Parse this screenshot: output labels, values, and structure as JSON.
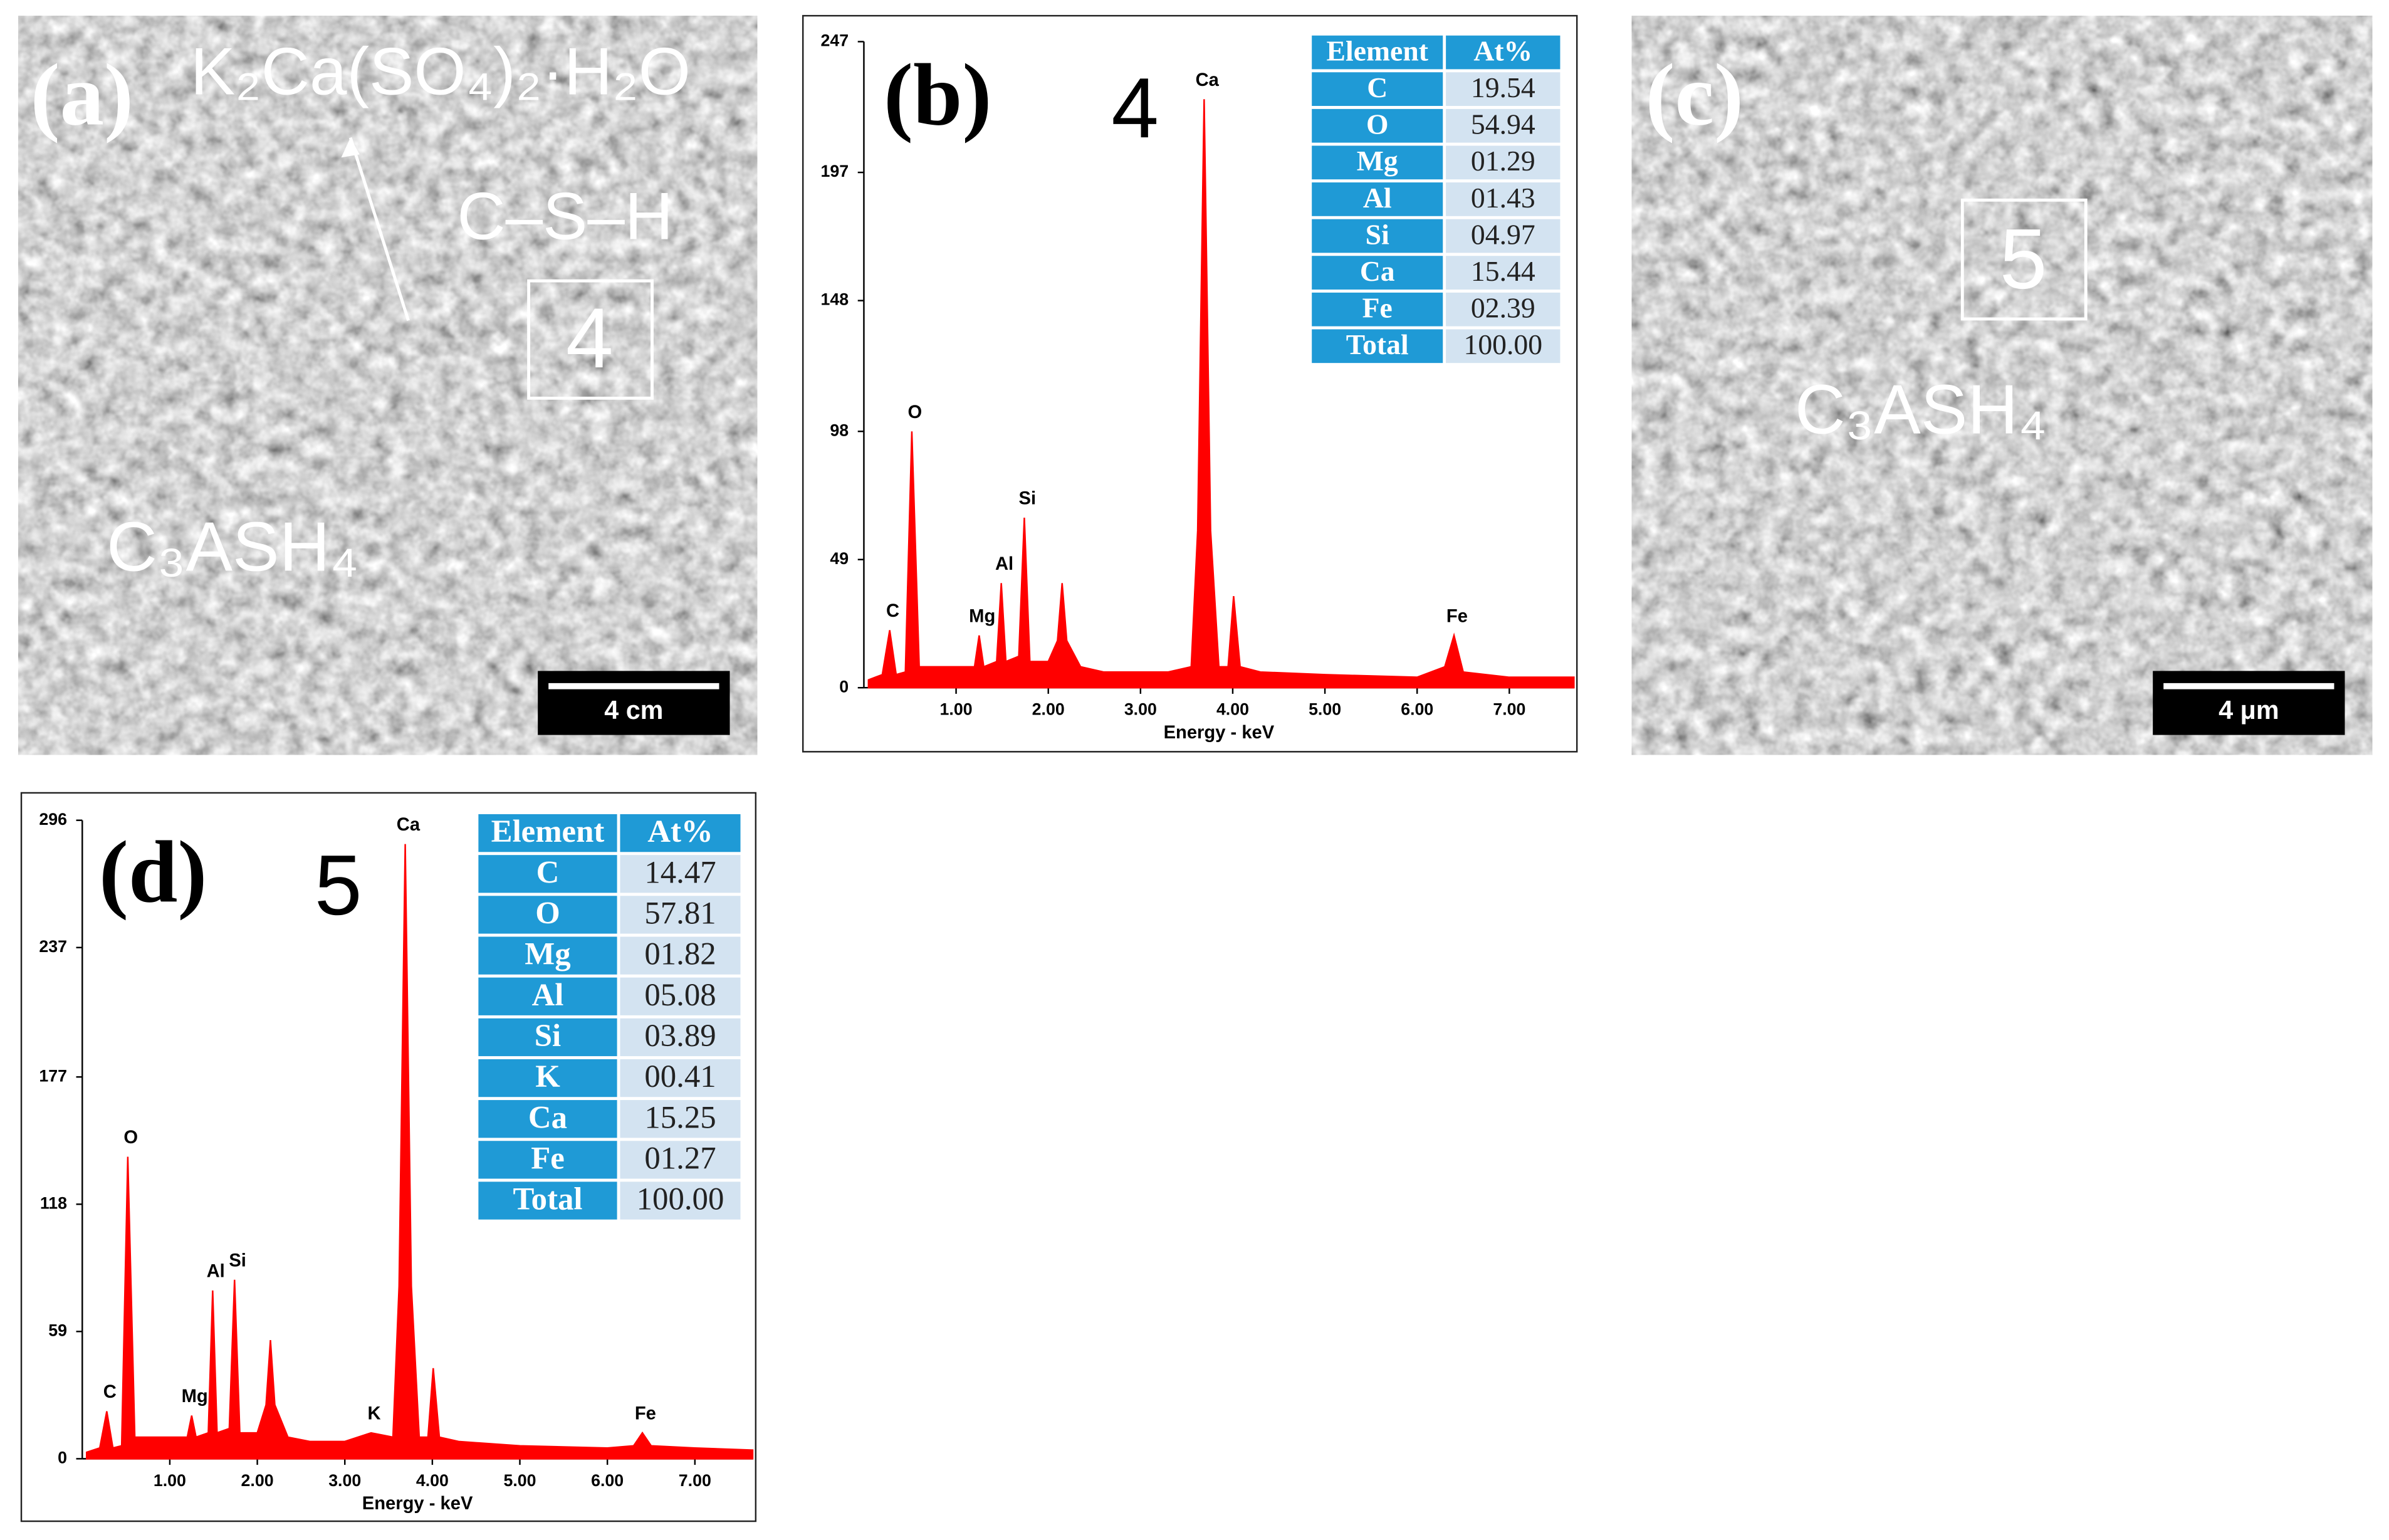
{
  "panels": [
    {
      "letter": "(a)",
      "labels": [
        "K₂Ca(SO₄)₂·H₂O",
        "C–S–H",
        "4",
        "C₃ASH₄"
      ],
      "scale_bar": "4 cm"
    },
    {
      "letter": "(c)",
      "labels": [
        "5",
        "C₃ASH₄"
      ],
      "scale_bar": "4 μm"
    }
  ],
  "chart_data": [
    {
      "type": "area",
      "letter": "(b)",
      "spot": "4",
      "xlabel": "Energy - keV",
      "color": "#ff0000",
      "x": [
        0.05,
        0.2,
        0.28,
        0.35,
        0.45,
        0.52,
        0.6,
        0.8,
        1.0,
        1.2,
        1.25,
        1.3,
        1.44,
        1.49,
        1.54,
        1.68,
        1.74,
        1.8,
        2.0,
        2.1,
        2.15,
        2.2,
        2.35,
        2.6,
        3.0,
        3.3,
        3.55,
        3.62,
        3.69,
        3.76,
        3.85,
        3.95,
        4.01,
        4.08,
        4.3,
        5.0,
        6.0,
        6.3,
        6.4,
        6.5,
        7.0,
        7.7
      ],
      "values": [
        3,
        5,
        22,
        5,
        6,
        98,
        8,
        8,
        8,
        8,
        20,
        8,
        10,
        40,
        10,
        12,
        65,
        10,
        10,
        18,
        40,
        18,
        8,
        6,
        6,
        6,
        8,
        60,
        225,
        60,
        8,
        8,
        35,
        8,
        6,
        5,
        4,
        8,
        20,
        6,
        4,
        4
      ],
      "xlim": [
        0,
        7.7
      ],
      "ylim": [
        0,
        247
      ],
      "xticks": [
        {
          "value": 1,
          "label": "1.00"
        },
        {
          "value": 2,
          "label": "2.00"
        },
        {
          "value": 3,
          "label": "3.00"
        },
        {
          "value": 4,
          "label": "4.00"
        },
        {
          "value": 5,
          "label": "5.00"
        },
        {
          "value": 6,
          "label": "6.00"
        },
        {
          "value": 7,
          "label": "7.00"
        }
      ],
      "yticks": [
        0,
        49,
        98,
        148,
        197,
        247
      ],
      "annotations": [
        {
          "text": "C",
          "x": 0.28,
          "y": 22
        },
        {
          "text": "O",
          "x": 0.52,
          "y": 98
        },
        {
          "text": "Mg",
          "x": 1.25,
          "y": 20
        },
        {
          "text": "Al",
          "x": 1.49,
          "y": 40
        },
        {
          "text": "Si",
          "x": 1.74,
          "y": 65
        },
        {
          "text": "Ca",
          "x": 3.69,
          "y": 225
        },
        {
          "text": "Fe",
          "x": 6.4,
          "y": 20
        }
      ],
      "table": {
        "header": [
          "Element",
          "At%"
        ],
        "rows": [
          [
            "C",
            "19.54"
          ],
          [
            "O",
            "54.94"
          ],
          [
            "Mg",
            "01.29"
          ],
          [
            "Al",
            "01.43"
          ],
          [
            "Si",
            "04.97"
          ],
          [
            "Ca",
            "15.44"
          ],
          [
            "Fe",
            "02.39"
          ],
          [
            "Total",
            "100.00"
          ]
        ]
      }
    },
    {
      "type": "area",
      "letter": "(d)",
      "spot": "5",
      "xlabel": "Energy - keV",
      "color": "#ff0000",
      "x": [
        0.05,
        0.2,
        0.28,
        0.35,
        0.45,
        0.52,
        0.6,
        0.8,
        1.0,
        1.2,
        1.25,
        1.3,
        1.44,
        1.49,
        1.54,
        1.68,
        1.74,
        1.8,
        2.0,
        2.1,
        2.15,
        2.2,
        2.35,
        2.6,
        3.0,
        3.3,
        3.55,
        3.62,
        3.69,
        3.76,
        3.85,
        3.95,
        4.01,
        4.08,
        4.3,
        5.0,
        6.0,
        6.3,
        6.4,
        6.5,
        7.0,
        7.66
      ],
      "values": [
        3,
        5,
        22,
        5,
        6,
        140,
        10,
        10,
        10,
        10,
        20,
        10,
        12,
        78,
        12,
        14,
        83,
        12,
        12,
        25,
        55,
        25,
        10,
        8,
        8,
        12,
        10,
        80,
        285,
        80,
        10,
        10,
        42,
        10,
        8,
        6,
        5,
        6,
        12,
        6,
        5,
        4
      ],
      "xlim": [
        0,
        7.66
      ],
      "ylim": [
        0,
        296
      ],
      "xticks": [
        {
          "value": 1,
          "label": "1.00"
        },
        {
          "value": 2,
          "label": "2.00"
        },
        {
          "value": 3,
          "label": "3.00"
        },
        {
          "value": 4,
          "label": "4.00"
        },
        {
          "value": 5,
          "label": "5.00"
        },
        {
          "value": 6,
          "label": "6.00"
        },
        {
          "value": 7,
          "label": "7.00"
        }
      ],
      "yticks": [
        0,
        59,
        118,
        177,
        237,
        296
      ],
      "annotations": [
        {
          "text": "C",
          "x": 0.28,
          "y": 22
        },
        {
          "text": "O",
          "x": 0.52,
          "y": 140
        },
        {
          "text": "Mg",
          "x": 1.25,
          "y": 20
        },
        {
          "text": "Al",
          "x": 1.49,
          "y": 78
        },
        {
          "text": "Si",
          "x": 1.74,
          "y": 83
        },
        {
          "text": "K",
          "x": 3.3,
          "y": 12
        },
        {
          "text": "Ca",
          "x": 3.69,
          "y": 285
        },
        {
          "text": "Fe",
          "x": 6.4,
          "y": 12
        }
      ],
      "table": {
        "header": [
          "Element",
          "At%"
        ],
        "rows": [
          [
            "C",
            "14.47"
          ],
          [
            "O",
            "57.81"
          ],
          [
            "Mg",
            "01.82"
          ],
          [
            "Al",
            "05.08"
          ],
          [
            "Si",
            "03.89"
          ],
          [
            "K",
            "00.41"
          ],
          [
            "Ca",
            "15.25"
          ],
          [
            "Fe",
            "01.27"
          ],
          [
            "Total",
            "100.00"
          ]
        ]
      }
    }
  ]
}
